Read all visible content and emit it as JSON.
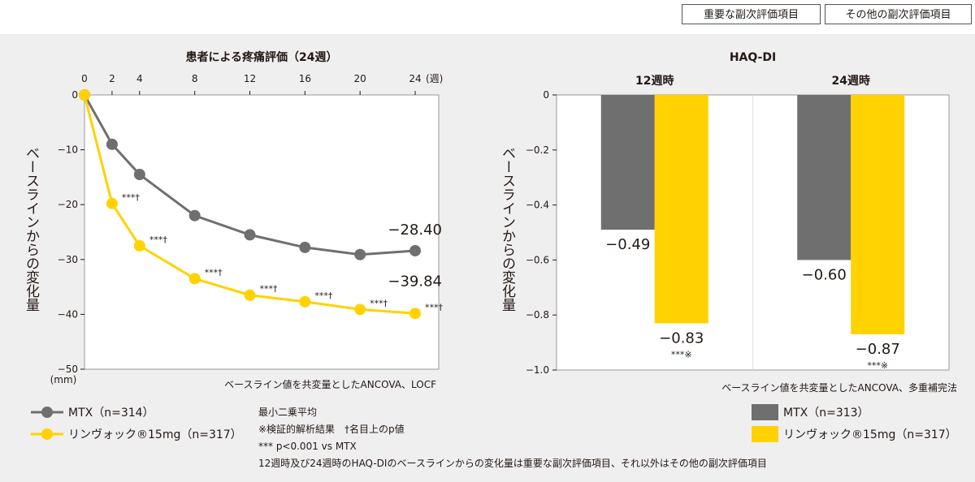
{
  "tags": [
    "重要な副次評価項目",
    "その他の副次評価項目"
  ],
  "colors": {
    "mtx": "#6f6f6f",
    "rinvoq": "#ffd200",
    "plot_bg": "#ffffff",
    "text": "#231815"
  },
  "chart_data": [
    {
      "type": "line",
      "title": "患者による疼痛評価（24週）",
      "ylabel": "ベースラインからの変化量",
      "yunit": "(mm)",
      "xunit": "(週)",
      "x": [
        0,
        2,
        4,
        8,
        12,
        16,
        20,
        24
      ],
      "x_ticks": [
        0,
        2,
        4,
        8,
        12,
        16,
        20,
        24
      ],
      "y_ticks": [
        0,
        -10,
        -20,
        -30,
        -40,
        -50
      ],
      "xlim": [
        0,
        24
      ],
      "ylim": [
        -50,
        0
      ],
      "series": [
        {
          "name": "MTX（n=314）",
          "color": "#6f6f6f",
          "values": [
            0,
            -9,
            -14.5,
            -22,
            -25.5,
            -27.8,
            -29.1,
            -28.4
          ]
        },
        {
          "name": "リンヴォック®15mg（n=317）",
          "color": "#ffd200",
          "values": [
            0,
            -19.8,
            -27.5,
            -33.5,
            -36.5,
            -37.7,
            -39.1,
            -39.84
          ],
          "significance": [
            "",
            "***†",
            "***†",
            "***†",
            "***†",
            "***†",
            "***†",
            "***†"
          ]
        }
      ],
      "end_labels": [
        "−28.40",
        "−39.84"
      ],
      "method": "ベースライン値を共変量としたANCOVA、LOCF",
      "legend": [
        "MTX（n=314）",
        "リンヴォック®15mg（n=317）"
      ],
      "notes": [
        "最小二乗平均",
        "※検証的解析結果　†名目上のp値",
        "*** p<0.001 vs MTX"
      ]
    },
    {
      "type": "bar",
      "title": "HAQ-DI",
      "ylabel": "ベースラインからの変化量",
      "categories": [
        "12週時",
        "24週時"
      ],
      "y_ticks": [
        0,
        -0.2,
        -0.4,
        -0.6,
        -0.8,
        -1.0
      ],
      "y_tick_labels": [
        "0",
        "−0.2",
        "−0.4",
        "−0.6",
        "−0.8",
        "−1.0"
      ],
      "ylim": [
        -1.0,
        0
      ],
      "series": [
        {
          "name": "MTX（n=313）",
          "color": "#6f6f6f",
          "values": [
            -0.49,
            -0.6
          ],
          "labels": [
            "−0.49",
            "−0.60"
          ]
        },
        {
          "name": "リンヴォック®15mg（n=317）",
          "color": "#ffd200",
          "values": [
            -0.83,
            -0.87
          ],
          "labels": [
            "−0.83",
            "−0.87"
          ],
          "significance": [
            "***※",
            "***※"
          ]
        }
      ],
      "method": "ベースライン値を共変量としたANCOVA、多重補完法",
      "legend": [
        "MTX（n=313）",
        "リンヴォック®15mg（n=317）"
      ]
    }
  ],
  "footnote": "12週時及び24週時のHAQ-DIのベースラインからの変化量は重要な副次評価項目、それ以外はその他の副次評価項目"
}
